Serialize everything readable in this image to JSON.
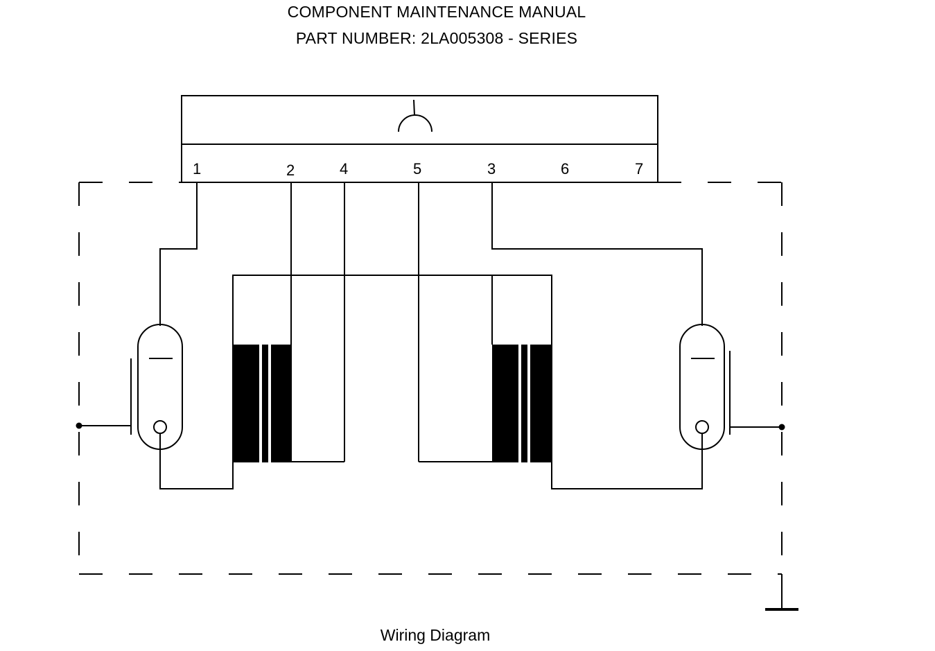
{
  "header": {
    "line1": "COMPONENT MAINTENANCE MANUAL",
    "line2": "PART NUMBER: 2LA005308 - SERIES"
  },
  "connector": {
    "pins": [
      "1",
      "2",
      "4",
      "5",
      "3",
      "6",
      "7"
    ]
  },
  "caption": "Wiring Diagram"
}
